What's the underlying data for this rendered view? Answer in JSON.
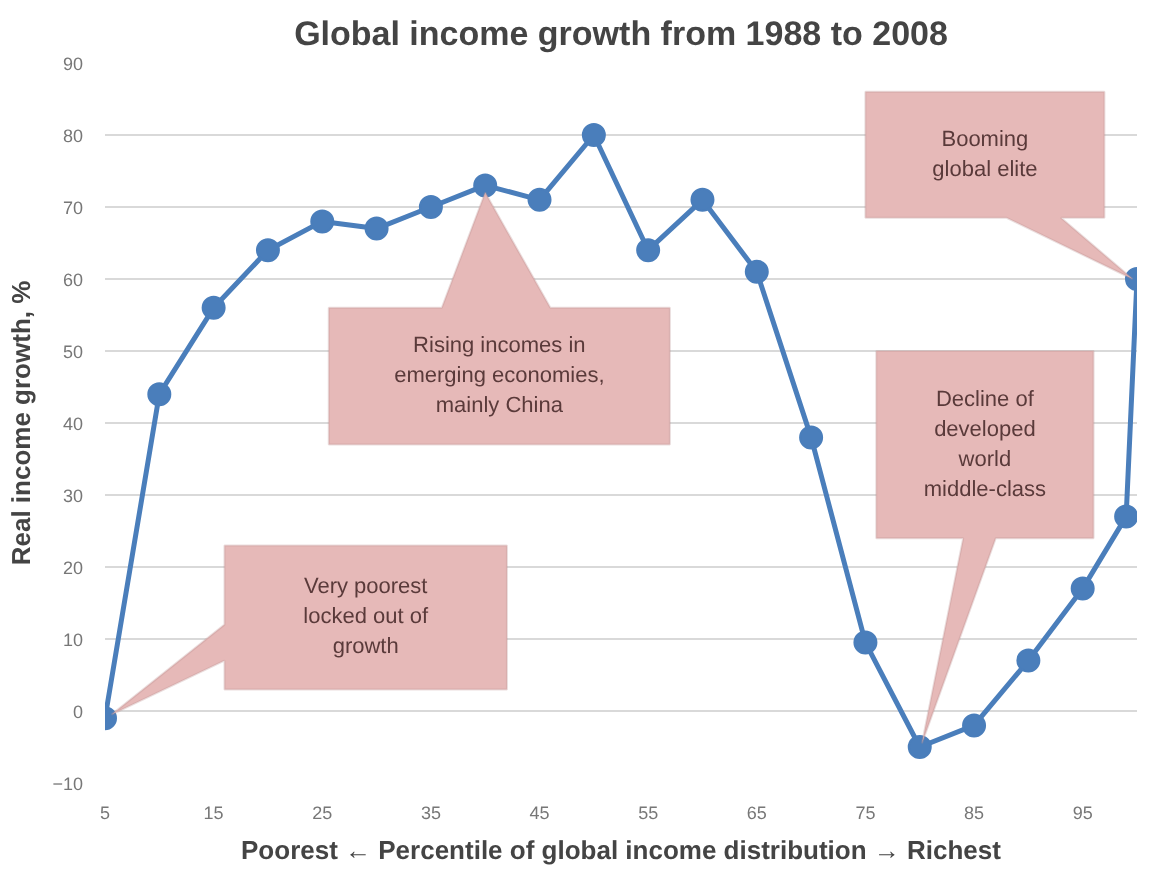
{
  "chart_data": {
    "type": "line",
    "title": "Global income growth from 1988 to 2008",
    "xlabel": "Poorest ← Percentile of global income distribution → Richest",
    "ylabel": "Real income growth, %",
    "x": [
      5,
      10,
      15,
      20,
      25,
      30,
      35,
      40,
      45,
      50,
      55,
      60,
      65,
      70,
      75,
      80,
      85,
      90,
      95,
      99,
      100
    ],
    "series": [
      {
        "color": "#4a7ebb",
        "values": [
          -1,
          44,
          56,
          64,
          68,
          67,
          70,
          73,
          71,
          80,
          64,
          71,
          61,
          38,
          9.5,
          -5,
          -2,
          7,
          17,
          27,
          60
        ]
      }
    ],
    "xlim": [
      5,
      100
    ],
    "xticks": [
      5,
      15,
      25,
      35,
      45,
      55,
      65,
      75,
      85,
      95
    ],
    "ylim": [
      -10,
      90
    ],
    "yticks": [
      -10,
      0,
      10,
      20,
      30,
      40,
      50,
      60,
      70,
      80,
      90
    ],
    "grid": "y",
    "marker": "circle",
    "line_style": "solid",
    "annotations": [
      "Very poorest\nlocked out of\ngrowth",
      "Rising incomes in\nemerging economies,\nmainly China",
      "Booming\nglobal elite",
      "Decline of\ndeveloped\nworld\nmiddle-class"
    ]
  }
}
